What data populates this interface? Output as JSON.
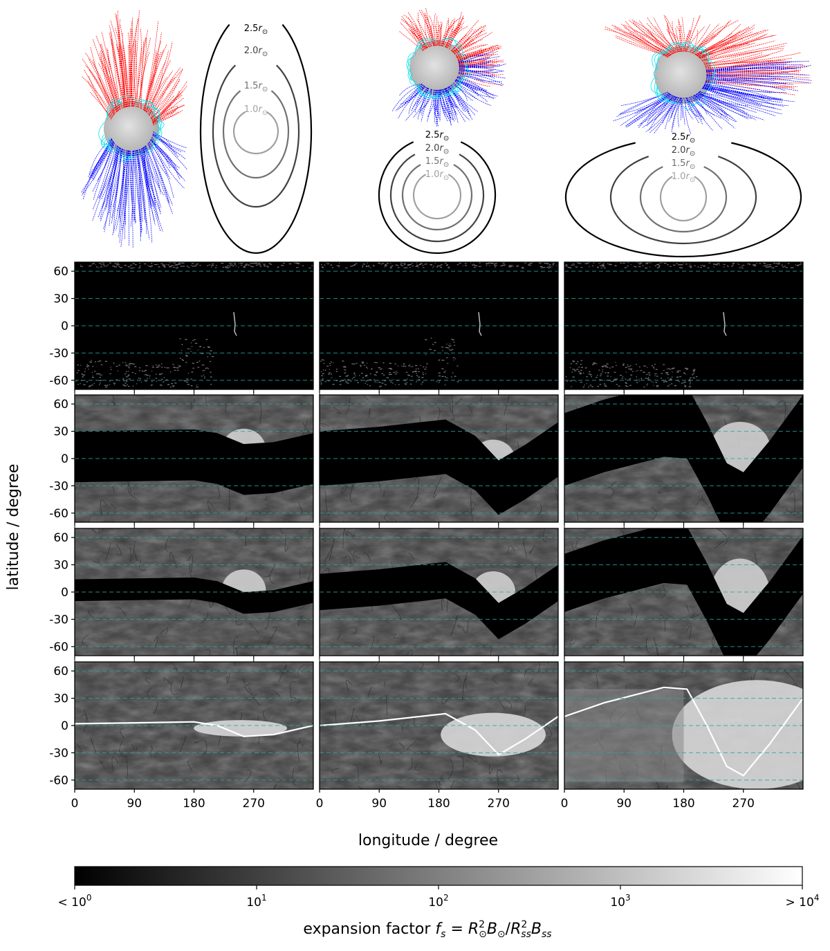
{
  "figure": {
    "ylabel": "latitude / degree",
    "xlabel": "longitude / degree",
    "lat_ticks": [
      "60",
      "30",
      "0",
      "-30",
      "-60"
    ],
    "lon_ticks": [
      "0",
      "90",
      "180",
      "270"
    ],
    "colorbar": {
      "label_prefix": "expansion factor ",
      "label_formula": "f_s = R_⊙^2 B_⊙ / R_ss^2 B_ss",
      "label_f": "f",
      "label_s": "s",
      "label_eq": " = ",
      "label_R1": "R",
      "label_sun_sub": "⊙",
      "label_sq": "2",
      "label_B1": "B",
      "label_slash": "/",
      "label_R2": "R",
      "label_ss_sub": "ss",
      "label_B2": "B",
      "ticks": [
        "< 10",
        "10",
        "10",
        "10",
        "> 10"
      ],
      "tick_exponents": [
        "0",
        "1",
        "2",
        "3",
        "4"
      ],
      "scale": "log"
    },
    "source_surface_rings": {
      "labels": [
        "2.5",
        "2.0",
        "1.5",
        "1.0"
      ],
      "unit_symbol": "r",
      "unit_sub": "⊙",
      "colors": [
        "#000000",
        "#404040",
        "#707070",
        "#a0a0a0"
      ]
    },
    "colors": {
      "open_field_positive": "#ff0000",
      "open_field_negative": "#0000ff",
      "closed_field": "#00e5ee",
      "sun_surface": "#c8c8c8",
      "latitude_guides": "#2aa5a5"
    }
  }
}
